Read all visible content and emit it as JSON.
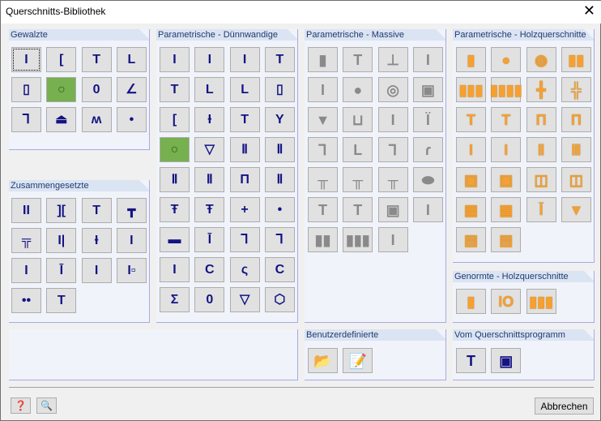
{
  "window": {
    "title": "Querschnitts-Bibliothek",
    "close_icon": "close-icon"
  },
  "colors": {
    "accent_blue": "#141483",
    "selected_green": "#76b04f",
    "wood_orange": "#f5a030",
    "solid_gray": "#8a8a8a",
    "header_bg": "#dbe4f3"
  },
  "sections": [
    {
      "id": "gewalzte",
      "title": "Gewalzte",
      "style": "blue",
      "items": [
        {
          "icon": "i-beam-icon",
          "glyph": "I"
        },
        {
          "icon": "channel-icon",
          "glyph": "["
        },
        {
          "icon": "t-section-icon",
          "glyph": "T"
        },
        {
          "icon": "angle-icon",
          "glyph": "L"
        },
        {
          "icon": "rect-hollow-icon",
          "glyph": "▯"
        },
        {
          "icon": "circle-hollow-icon",
          "glyph": "○",
          "active": true
        },
        {
          "icon": "oval-hollow-icon",
          "glyph": "0"
        },
        {
          "icon": "bent-angle-icon",
          "glyph": "∠"
        },
        {
          "icon": "z-section-icon",
          "glyph": "Ꞁ"
        },
        {
          "icon": "rail-icon",
          "glyph": "⏏"
        },
        {
          "icon": "sheet-pile-icon",
          "glyph": "ʍ"
        },
        {
          "icon": "round-bar-icon",
          "glyph": "•"
        }
      ]
    },
    {
      "id": "zusammengesetzte",
      "title": "Zusammengesetzte",
      "style": "blue",
      "items": [
        {
          "icon": "double-i-icon",
          "glyph": "II"
        },
        {
          "icon": "double-channel-icon",
          "glyph": "]["
        },
        {
          "icon": "i-with-plate-icon",
          "glyph": "T"
        },
        {
          "icon": "double-angle-t-icon",
          "glyph": "┳"
        },
        {
          "icon": "double-t-icon",
          "glyph": "╦"
        },
        {
          "icon": "i-channel-icon",
          "glyph": "I|"
        },
        {
          "icon": "i-bottom-plate-icon",
          "glyph": "Ɨ"
        },
        {
          "icon": "i-top-plate-icon",
          "glyph": "I"
        },
        {
          "icon": "i-reinforced-icon",
          "glyph": "I"
        },
        {
          "icon": "i-top-strengthened-icon",
          "glyph": "Ī"
        },
        {
          "icon": "i-split-icon",
          "glyph": "I"
        },
        {
          "icon": "i-box-icon",
          "glyph": "I▫"
        },
        {
          "icon": "two-bars-icon",
          "glyph": "••"
        },
        {
          "icon": "t-angle-icon",
          "glyph": "T"
        }
      ]
    },
    {
      "id": "duennwandige",
      "title": "Parametrische - Dünnwandige",
      "style": "blue",
      "items": [
        {
          "icon": "i-param-1-icon",
          "glyph": "I"
        },
        {
          "icon": "i-param-2-icon",
          "glyph": "I"
        },
        {
          "icon": "i-param-3-icon",
          "glyph": "I"
        },
        {
          "icon": "t-param-icon",
          "glyph": "T"
        },
        {
          "icon": "t-param-2-icon",
          "glyph": "T"
        },
        {
          "icon": "angle-param-icon",
          "glyph": "L"
        },
        {
          "icon": "angle-param-2-icon",
          "glyph": "L"
        },
        {
          "icon": "rect-param-icon",
          "glyph": "▯"
        },
        {
          "icon": "channel-param-icon",
          "glyph": "["
        },
        {
          "icon": "i-lipped-icon",
          "glyph": "Ɨ"
        },
        {
          "icon": "t-thick-icon",
          "glyph": "T"
        },
        {
          "icon": "y-section-icon",
          "glyph": "Y"
        },
        {
          "icon": "circle-param-icon",
          "glyph": "○",
          "active": true
        },
        {
          "icon": "triangle-hollow-icon",
          "glyph": "▽"
        },
        {
          "icon": "double-web-box-icon",
          "glyph": "Ⅱ"
        },
        {
          "icon": "box-flange-icon",
          "glyph": "Ⅱ"
        },
        {
          "icon": "trapezoid-box-icon",
          "glyph": "Ⅱ"
        },
        {
          "icon": "trapezoid-box-2-icon",
          "glyph": "Ⅱ"
        },
        {
          "icon": "pi-section-icon",
          "glyph": "Π"
        },
        {
          "icon": "double-t-param-icon",
          "glyph": "Ⅱ"
        },
        {
          "icon": "i-bottom-bulb-icon",
          "glyph": "Ŧ"
        },
        {
          "icon": "i-top-bulb-icon",
          "glyph": "Ŧ"
        },
        {
          "icon": "cross-icon",
          "glyph": "+"
        },
        {
          "icon": "dot-icon",
          "glyph": "•"
        },
        {
          "icon": "flat-bar-icon",
          "glyph": "▬"
        },
        {
          "icon": "bulb-i-icon",
          "glyph": "Ī"
        },
        {
          "icon": "z-param-icon",
          "glyph": "Ꞁ"
        },
        {
          "icon": "s-param-icon",
          "glyph": "Ꞁ"
        },
        {
          "icon": "i-thin-icon",
          "glyph": "I"
        },
        {
          "icon": "c-lipped-icon",
          "glyph": "Ϲ"
        },
        {
          "icon": "sigma-lipped-icon",
          "glyph": "ς"
        },
        {
          "icon": "c-hat-icon",
          "glyph": "Ϲ"
        },
        {
          "icon": "sigma-icon",
          "glyph": "Σ"
        },
        {
          "icon": "oval-param-icon",
          "glyph": "0"
        },
        {
          "icon": "trapezoid-icon",
          "glyph": "▽"
        },
        {
          "icon": "polygon-icon",
          "glyph": "⬡"
        }
      ]
    },
    {
      "id": "massive",
      "title": "Parametrische - Massive",
      "style": "gray",
      "items": [
        {
          "icon": "solid-rect-icon",
          "glyph": "▮"
        },
        {
          "icon": "solid-t-icon",
          "glyph": "T"
        },
        {
          "icon": "solid-inv-t-icon",
          "glyph": "⊥"
        },
        {
          "icon": "solid-i-icon",
          "glyph": "I"
        },
        {
          "icon": "solid-i-small-icon",
          "glyph": "I"
        },
        {
          "icon": "solid-circle-icon",
          "glyph": "●"
        },
        {
          "icon": "solid-ring-icon",
          "glyph": "◎"
        },
        {
          "icon": "solid-box-icon",
          "glyph": "▣"
        },
        {
          "icon": "solid-trapezoid-icon",
          "glyph": "▼"
        },
        {
          "icon": "solid-u-icon",
          "glyph": "⊔"
        },
        {
          "icon": "solid-i-haunch-icon",
          "glyph": "I"
        },
        {
          "icon": "solid-t-haunch-icon",
          "glyph": "Ϊ"
        },
        {
          "icon": "solid-angle-t-icon",
          "glyph": "Ꞁ"
        },
        {
          "icon": "solid-l-icon",
          "glyph": "L"
        },
        {
          "icon": "solid-z-icon",
          "glyph": "ꓶ"
        },
        {
          "icon": "solid-s-icon",
          "glyph": "ɾ"
        },
        {
          "icon": "solid-double-t-icon",
          "glyph": "╥"
        },
        {
          "icon": "solid-double-t-2-icon",
          "glyph": "╥"
        },
        {
          "icon": "solid-double-t-haunch-icon",
          "glyph": "╥"
        },
        {
          "icon": "solid-oval-icon",
          "glyph": "⬬"
        },
        {
          "icon": "solid-t-slab-icon",
          "glyph": "T"
        },
        {
          "icon": "solid-t-slab-2-icon",
          "glyph": "T"
        },
        {
          "icon": "solid-hollow-rect-icon",
          "glyph": "▣"
        },
        {
          "icon": "solid-x-icon",
          "glyph": "I"
        },
        {
          "icon": "solid-two-bars-icon",
          "glyph": "▮▮"
        },
        {
          "icon": "solid-three-bars-icon",
          "glyph": "▮▮▮"
        },
        {
          "icon": "solid-i-beam-icon",
          "glyph": "I"
        }
      ]
    },
    {
      "id": "holz",
      "title": "Parametrische - Holzquerschnitte",
      "style": "orange",
      "items": [
        {
          "icon": "wood-rect-icon",
          "glyph": "▮"
        },
        {
          "icon": "wood-circle-icon",
          "glyph": "●"
        },
        {
          "icon": "wood-split-circle-icon",
          "glyph": "◍"
        },
        {
          "icon": "wood-two-bars-icon",
          "glyph": "▮▮"
        },
        {
          "icon": "wood-three-bars-icon",
          "glyph": "▮▮▮"
        },
        {
          "icon": "wood-four-bars-icon",
          "glyph": "▮▮▮▮"
        },
        {
          "icon": "wood-cross-icon",
          "glyph": "╋"
        },
        {
          "icon": "wood-double-cross-icon",
          "glyph": "╬"
        },
        {
          "icon": "wood-t-icon",
          "glyph": "T"
        },
        {
          "icon": "wood-t-2-icon",
          "glyph": "T"
        },
        {
          "icon": "wood-pi-icon",
          "glyph": "Π"
        },
        {
          "icon": "wood-pi-2-icon",
          "glyph": "Π"
        },
        {
          "icon": "wood-i-icon",
          "glyph": "I"
        },
        {
          "icon": "wood-i-2-icon",
          "glyph": "I"
        },
        {
          "icon": "wood-box-icon",
          "glyph": "Ⅱ"
        },
        {
          "icon": "wood-box-2-icon",
          "glyph": "Ⅲ"
        },
        {
          "icon": "wood-hollow-icon",
          "glyph": "▣"
        },
        {
          "icon": "wood-hollow-2-icon",
          "glyph": "▣"
        },
        {
          "icon": "wood-hollow-3-icon",
          "glyph": "◫"
        },
        {
          "icon": "wood-hollow-4-icon",
          "glyph": "◫"
        },
        {
          "icon": "wood-grid-icon",
          "glyph": "▦"
        },
        {
          "icon": "wood-grid-2-icon",
          "glyph": "▦"
        },
        {
          "icon": "wood-i-steel-icon",
          "glyph": "Ī"
        },
        {
          "icon": "wood-trapezoid-icon",
          "glyph": "▼"
        },
        {
          "icon": "wood-laminated-icon",
          "glyph": "▤"
        },
        {
          "icon": "wood-laminated-2-icon",
          "glyph": "▤"
        }
      ]
    },
    {
      "id": "genormte",
      "title": "Genormte - Holzquerschnitte",
      "style": "orange",
      "items": [
        {
          "icon": "std-wood-rect-icon",
          "glyph": "▮"
        },
        {
          "icon": "std-wood-io-icon",
          "glyph": "IO"
        },
        {
          "icon": "std-wood-multi-icon",
          "glyph": "▮▮▮"
        }
      ]
    },
    {
      "id": "benutzer",
      "title": "Benutzerdefinierte",
      "style": "color",
      "items": [
        {
          "icon": "open-folder-icon",
          "glyph": "📂"
        },
        {
          "icon": "edit-document-icon",
          "glyph": "📝"
        }
      ]
    },
    {
      "id": "querschnittsprogramm",
      "title": "Vom Querschnittsprogramm",
      "style": "color",
      "items": [
        {
          "icon": "shape-thin-icon",
          "glyph": "T"
        },
        {
          "icon": "shape-massive-icon",
          "glyph": "▣"
        }
      ]
    }
  ],
  "footer": {
    "help_icon": "help-icon",
    "info_icon": "info-icon",
    "cancel_label": "Abbrechen"
  }
}
